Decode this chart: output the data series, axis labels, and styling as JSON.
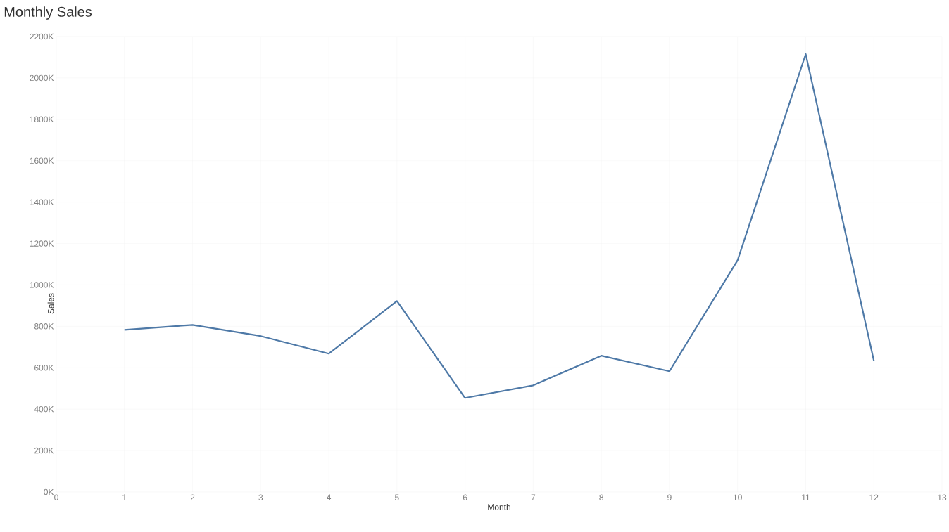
{
  "chart_data": {
    "type": "line",
    "title": "Monthly Sales",
    "xlabel": "Month",
    "ylabel": "Sales",
    "x": [
      1,
      2,
      3,
      4,
      5,
      6,
      7,
      8,
      9,
      10,
      11,
      12
    ],
    "series": [
      {
        "color": "#4e79a7",
        "values": [
          783,
          807,
          753,
          668,
          922,
          454,
          515,
          658,
          583,
          1119,
          2115,
          634
        ]
      }
    ],
    "xlim": [
      0,
      13
    ],
    "xticks": [
      0,
      1,
      2,
      3,
      4,
      5,
      6,
      7,
      8,
      9,
      10,
      11,
      12,
      13
    ],
    "ylim": [
      0,
      2200
    ],
    "yticks": [
      {
        "value": 0,
        "label": "0K"
      },
      {
        "value": 200,
        "label": "200K"
      },
      {
        "value": 400,
        "label": "400K"
      },
      {
        "value": 600,
        "label": "600K"
      },
      {
        "value": 800,
        "label": "800K"
      },
      {
        "value": 1000,
        "label": "1000K"
      },
      {
        "value": 1200,
        "label": "1200K"
      },
      {
        "value": 1400,
        "label": "1400K"
      },
      {
        "value": 1600,
        "label": "1600K"
      },
      {
        "value": 1800,
        "label": "1800K"
      },
      {
        "value": 2000,
        "label": "2000K"
      },
      {
        "value": 2200,
        "label": "2200K"
      }
    ],
    "grid": true,
    "marker": "none",
    "line_style": "solid"
  }
}
